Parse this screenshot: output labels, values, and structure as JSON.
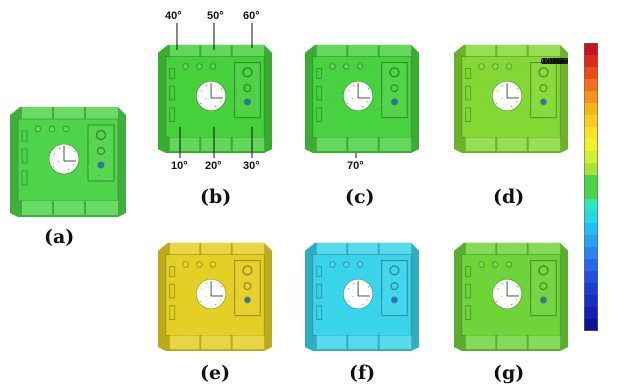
{
  "panels": [
    {
      "label": "(a)",
      "color": "#4ed44a"
    },
    {
      "label": "(b)",
      "color": "#46d03c"
    },
    {
      "label": "(c)",
      "color": "#48d140"
    },
    {
      "label": "(d)",
      "color": "#83d835"
    },
    {
      "label": "(e)",
      "color": "#e4cf24"
    },
    {
      "label": "(f)",
      "color": "#3ad4ea"
    },
    {
      "label": "(g)",
      "color": "#6fd33a"
    }
  ],
  "angles": [
    "40°",
    "50°",
    "60°",
    "10°",
    "20°",
    "30°",
    "70°"
  ],
  "colorbar": {
    "ticks": [
      "2.0000",
      "1.8348",
      "1.6696",
      "1.5043",
      "1.3391",
      "1.1739",
      "1.0087",
      "0.8435",
      "0.6783",
      "0.5130",
      "0.3478",
      "0.1000",
      "-0.1000",
      "-0.3478",
      "-0.5130",
      "-0.6783",
      "-0.8435",
      "-1.0087",
      "-1.1739",
      "-1.3391",
      "-1.5043",
      "-1.6696",
      "-1.8348",
      "-2.0000"
    ],
    "colors": [
      "#c8141e",
      "#e0281c",
      "#ea4a1c",
      "#f0701c",
      "#f4941e",
      "#f6b41e",
      "#f8cc22",
      "#f6e22a",
      "#eef030",
      "#d2ee34",
      "#a8e438",
      "#4ed24a",
      "#4ed24a",
      "#2ee6b8",
      "#2ad6e6",
      "#26bcf0",
      "#2aa2f0",
      "#2a86ec",
      "#2868e4",
      "#2250da",
      "#1c3cd0",
      "#1a2ec4",
      "#141eb4",
      "#0c1298"
    ]
  }
}
